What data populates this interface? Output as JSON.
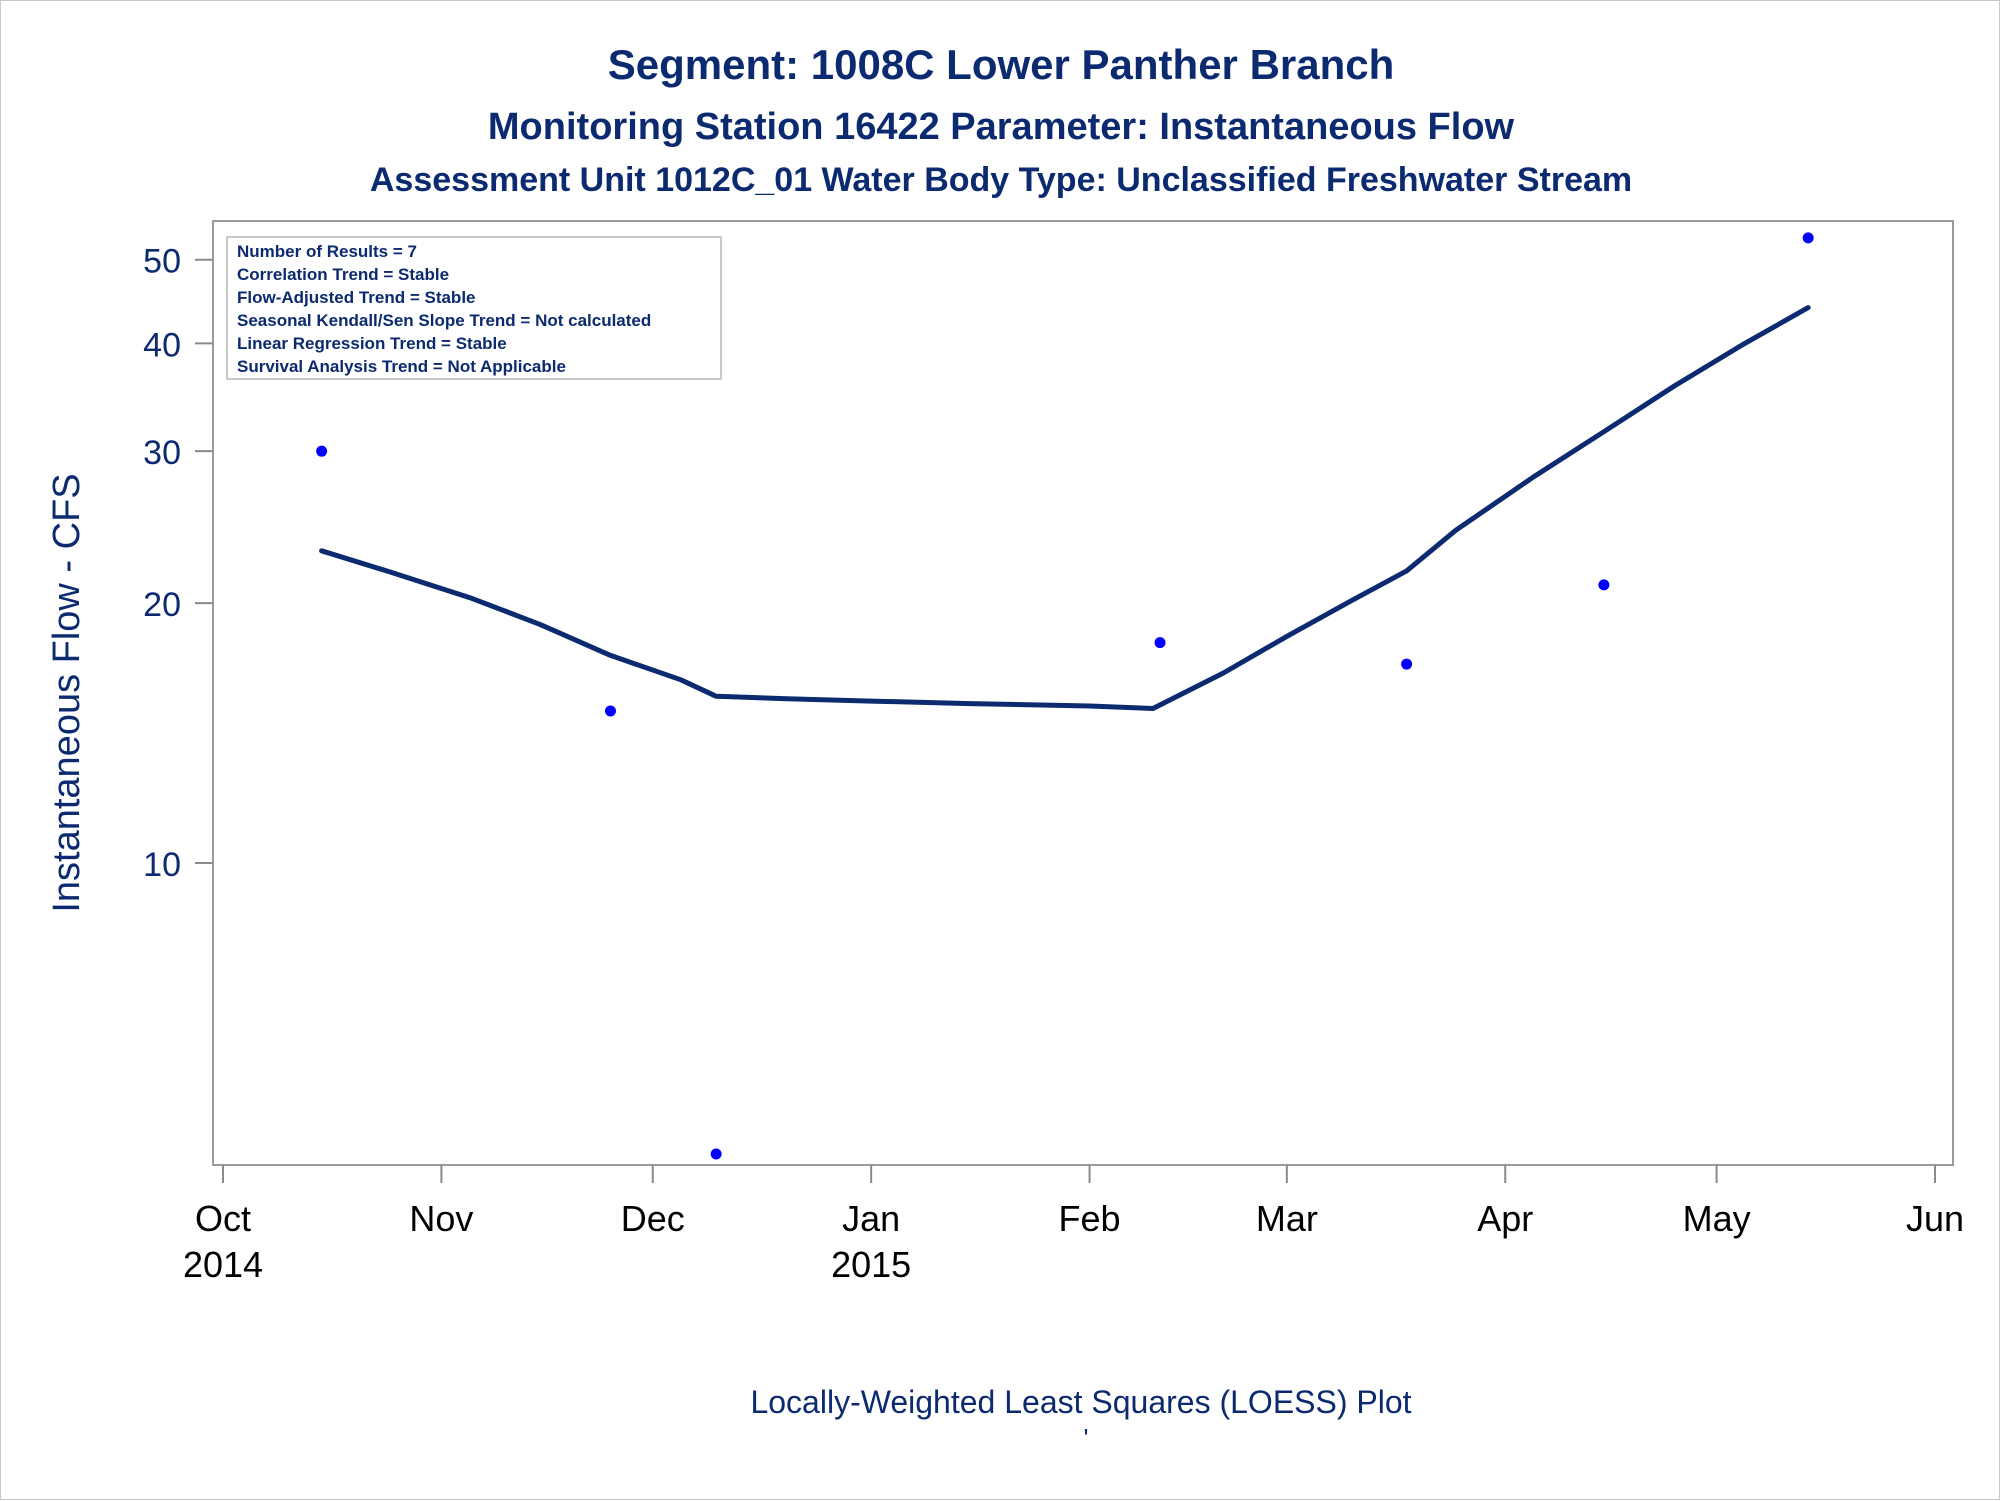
{
  "titles": {
    "line1": "Segment: 1008C  Lower Panther Branch",
    "line2": "Monitoring Station 16422 Parameter: Instantaneous Flow",
    "line3": "Assessment Unit 1012C_01   Water Body Type: Unclassified Freshwater Stream"
  },
  "footnote": "Locally-Weighted Least Squares (LOESS) Plot",
  "footnote_mark": "'",
  "inset_lines": [
    "Number of Results = 7",
    "Correlation Trend = Stable",
    "Flow-Adjusted Trend = Stable",
    "Seasonal Kendall/Sen Slope Trend = Not calculated",
    "Linear Regression Trend = Stable",
    "Survival Analysis Trend = Not Applicable"
  ],
  "colors": {
    "text": "#0b2a6f",
    "points": "#0000ff",
    "curve": "#0b2a6f",
    "axis": "#8a8a8a"
  },
  "chart_data": {
    "type": "scatter",
    "title": "Segment: 1008C  Lower Panther Branch",
    "ylabel": "Instantaneous Flow - CFS",
    "xlabel": "",
    "y_scale": "log",
    "ylim": [
      4.6,
      55
    ],
    "xlim": [
      "2014-10-01",
      "2015-06-01"
    ],
    "y_ticks": [
      10,
      20,
      30,
      40,
      50
    ],
    "x_ticks": [
      {
        "date": "2014-10-01",
        "label": "Oct",
        "sub": "2014"
      },
      {
        "date": "2014-11-01",
        "label": "Nov",
        "sub": ""
      },
      {
        "date": "2014-12-01",
        "label": "Dec",
        "sub": ""
      },
      {
        "date": "2015-01-01",
        "label": "Jan",
        "sub": "2015"
      },
      {
        "date": "2015-02-01",
        "label": "Feb",
        "sub": ""
      },
      {
        "date": "2015-03-01",
        "label": "Mar",
        "sub": ""
      },
      {
        "date": "2015-04-01",
        "label": "Apr",
        "sub": ""
      },
      {
        "date": "2015-05-01",
        "label": "May",
        "sub": ""
      },
      {
        "date": "2015-06-01",
        "label": "Jun",
        "sub": ""
      }
    ],
    "points": [
      {
        "x": "2014-10-15",
        "y": 30
      },
      {
        "x": "2014-11-25",
        "y": 15
      },
      {
        "x": "2014-12-10",
        "y": 4.6
      },
      {
        "x": "2015-02-11",
        "y": 18
      },
      {
        "x": "2015-03-18",
        "y": 17
      },
      {
        "x": "2015-04-15",
        "y": 21
      },
      {
        "x": "2015-05-14",
        "y": 53
      }
    ],
    "loess": [
      {
        "x": "2014-10-15",
        "y": 23
      },
      {
        "x": "2014-10-25",
        "y": 21.7
      },
      {
        "x": "2014-11-05",
        "y": 20.3
      },
      {
        "x": "2014-11-15",
        "y": 18.9
      },
      {
        "x": "2014-11-25",
        "y": 17.4
      },
      {
        "x": "2014-12-05",
        "y": 16.3
      },
      {
        "x": "2014-12-10",
        "y": 15.6
      },
      {
        "x": "2014-12-20",
        "y": 15.5
      },
      {
        "x": "2015-01-01",
        "y": 15.4
      },
      {
        "x": "2015-01-15",
        "y": 15.3
      },
      {
        "x": "2015-02-01",
        "y": 15.2
      },
      {
        "x": "2015-02-10",
        "y": 15.1
      },
      {
        "x": "2015-02-20",
        "y": 16.6
      },
      {
        "x": "2015-03-01",
        "y": 18.3
      },
      {
        "x": "2015-03-10",
        "y": 20.1
      },
      {
        "x": "2015-03-18",
        "y": 21.8
      },
      {
        "x": "2015-03-25",
        "y": 24.3
      },
      {
        "x": "2015-04-05",
        "y": 28
      },
      {
        "x": "2015-04-15",
        "y": 31.6
      },
      {
        "x": "2015-04-25",
        "y": 35.7
      },
      {
        "x": "2015-05-05",
        "y": 40
      },
      {
        "x": "2015-05-14",
        "y": 44
      }
    ]
  }
}
